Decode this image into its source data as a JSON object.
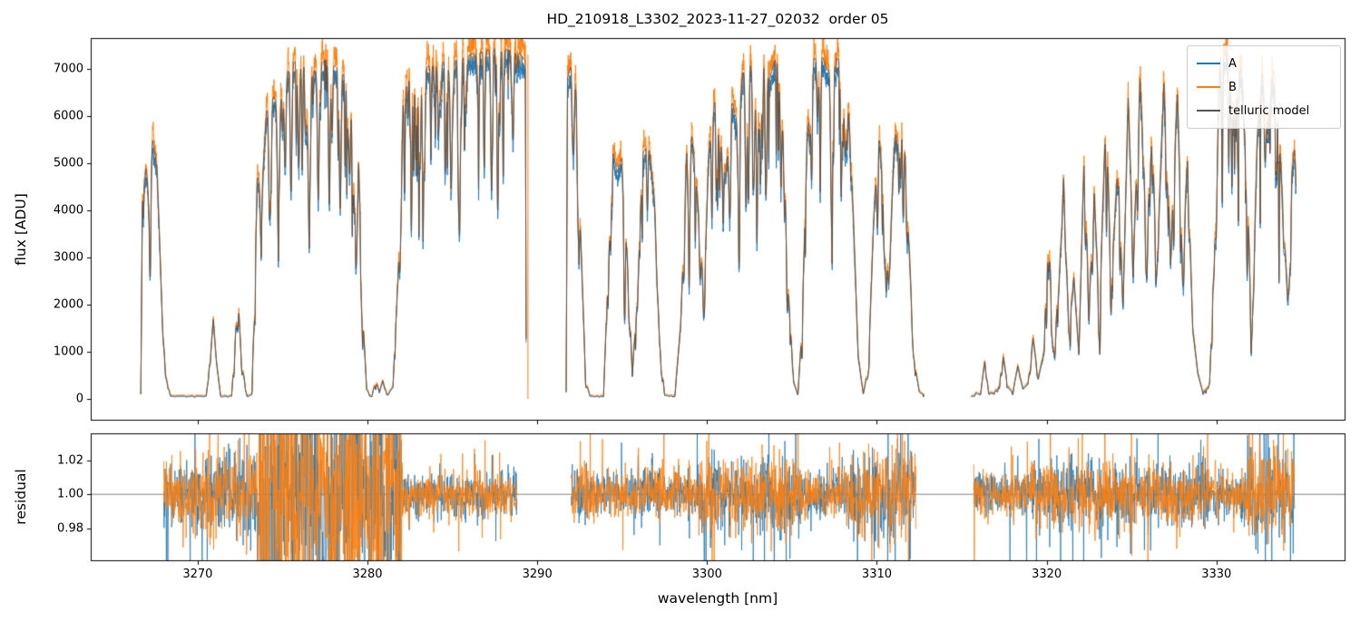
{
  "chart_data": {
    "type": "line",
    "title": "HD_210918_L3302_2023-11-27_02032  order 05",
    "xlabel": "wavelength [nm]",
    "xlim": [
      3263.7,
      3337.6
    ],
    "xticks": [
      3270,
      3280,
      3290,
      3300,
      3310,
      3320,
      3330
    ],
    "panels": [
      {
        "ylabel": "flux [ADU]",
        "ylim": [
          -460,
          7650
        ],
        "yticks": [
          0,
          1000,
          2000,
          3000,
          4000,
          5000,
          6000,
          7000
        ]
      },
      {
        "ylabel": "residual",
        "ylim": [
          0.9605,
          1.036
        ],
        "yticks": [
          0.98,
          1.0,
          1.02
        ],
        "ytick_labels": [
          "0.98",
          "1.00",
          "1.02"
        ],
        "hline": 1.0
      }
    ],
    "legend": {
      "position": "upper right",
      "entries": [
        {
          "label": "A",
          "color": "#1f77b4"
        },
        {
          "label": "B",
          "color": "#ff7f0e"
        },
        {
          "label": "telluric model",
          "color": "#555555"
        }
      ]
    },
    "traces": {
      "A": {
        "color": "#1f77b4",
        "scale": 0.965,
        "noise_frac": 0.018,
        "offset": 0,
        "seed": 11
      },
      "B": {
        "color": "#ff7f0e",
        "scale": 1.025,
        "noise_frac": 0.018,
        "offset": 25,
        "seed": 23
      },
      "model": {
        "color": "#4d4d4d",
        "scale": 1.0
      }
    },
    "microlines": {
      "density_per_nm": 6,
      "depth_range": [
        0.04,
        0.35
      ],
      "sigma_range": [
        0.012,
        0.045
      ],
      "seed": 7
    },
    "artifacts": [
      {
        "x": 3289.45,
        "y0": 0,
        "y1": 7300,
        "color": "#ff7f0e"
      }
    ],
    "spectrum_chunks": [
      {
        "x_start": 3266.65,
        "x_end": 3289.35,
        "envelope": [
          [
            3266.65,
            100
          ],
          [
            3266.75,
            4600
          ],
          [
            3266.95,
            5100
          ],
          [
            3267.1,
            4200
          ],
          [
            3267.35,
            5500
          ],
          [
            3267.6,
            4900
          ],
          [
            3267.85,
            2400
          ],
          [
            3268.1,
            500
          ],
          [
            3268.4,
            60
          ],
          [
            3270.5,
            60
          ],
          [
            3270.75,
            900
          ],
          [
            3270.92,
            1700
          ],
          [
            3271.1,
            800
          ],
          [
            3271.35,
            60
          ],
          [
            3272.0,
            60
          ],
          [
            3272.25,
            1500
          ],
          [
            3272.42,
            1850
          ],
          [
            3272.62,
            700
          ],
          [
            3272.9,
            60
          ],
          [
            3273.2,
            120
          ],
          [
            3273.5,
            4800
          ],
          [
            3273.75,
            4200
          ],
          [
            3274.05,
            6100
          ],
          [
            3274.4,
            6450
          ],
          [
            3274.8,
            6200
          ],
          [
            3275.2,
            6900
          ],
          [
            3275.7,
            7150
          ],
          [
            3276.3,
            7300
          ],
          [
            3276.9,
            6950
          ],
          [
            3277.5,
            7200
          ],
          [
            3278.1,
            7050
          ],
          [
            3278.7,
            6850
          ],
          [
            3279.2,
            6450
          ],
          [
            3279.5,
            5200
          ],
          [
            3279.75,
            1600
          ],
          [
            3279.95,
            200
          ],
          [
            3280.25,
            60
          ],
          [
            3280.5,
            420
          ],
          [
            3280.7,
            130
          ],
          [
            3280.9,
            390
          ],
          [
            3281.15,
            80
          ],
          [
            3281.5,
            250
          ],
          [
            3281.8,
            2600
          ],
          [
            3282.1,
            6300
          ],
          [
            3282.5,
            6950
          ],
          [
            3283.5,
            7050
          ],
          [
            3284.5,
            7150
          ],
          [
            3285.5,
            7250
          ],
          [
            3286.5,
            7350
          ],
          [
            3287.5,
            7430
          ],
          [
            3288.5,
            7400
          ],
          [
            3289.0,
            7320
          ],
          [
            3289.3,
            7150
          ],
          [
            3289.35,
            150
          ]
        ],
        "absorption_lines": [
          [
            3267.2,
            0.18,
            0.04
          ],
          [
            3274.3,
            0.3,
            0.05
          ],
          [
            3274.75,
            0.4,
            0.06
          ],
          [
            3275.15,
            0.28,
            0.05
          ],
          [
            3275.5,
            0.38,
            0.05
          ],
          [
            3275.95,
            0.32,
            0.05
          ],
          [
            3276.55,
            0.45,
            0.06
          ],
          [
            3277.1,
            0.4,
            0.05
          ],
          [
            3277.75,
            0.35,
            0.05
          ],
          [
            3278.4,
            0.32,
            0.05
          ],
          [
            3278.95,
            0.28,
            0.05
          ],
          [
            3279.35,
            0.3,
            0.05
          ],
          [
            3283.3,
            0.13,
            0.07
          ],
          [
            3284.2,
            0.1,
            0.06
          ],
          [
            3284.95,
            0.2,
            0.09
          ],
          [
            3285.8,
            0.12,
            0.06
          ],
          [
            3286.5,
            0.1,
            0.06
          ],
          [
            3287.3,
            0.07,
            0.05
          ],
          [
            3288.0,
            0.06,
            0.05
          ]
        ]
      },
      {
        "x_start": 3291.7,
        "x_end": 3312.8,
        "envelope": [
          [
            3291.7,
            150
          ],
          [
            3291.78,
            6800
          ],
          [
            3292.0,
            7100
          ],
          [
            3292.3,
            6500
          ],
          [
            3292.6,
            3000
          ],
          [
            3292.85,
            400
          ],
          [
            3293.1,
            60
          ],
          [
            3293.9,
            60
          ],
          [
            3294.15,
            2500
          ],
          [
            3294.45,
            5250
          ],
          [
            3294.7,
            4800
          ],
          [
            3294.95,
            5100
          ],
          [
            3295.3,
            3000
          ],
          [
            3295.6,
            600
          ],
          [
            3295.9,
            2100
          ],
          [
            3296.2,
            5200
          ],
          [
            3296.55,
            5450
          ],
          [
            3296.9,
            4200
          ],
          [
            3297.2,
            1200
          ],
          [
            3297.5,
            80
          ],
          [
            3298.1,
            60
          ],
          [
            3298.45,
            1600
          ],
          [
            3298.8,
            5400
          ],
          [
            3299.1,
            5600
          ],
          [
            3299.5,
            4000
          ],
          [
            3299.8,
            2300
          ],
          [
            3300.1,
            5200
          ],
          [
            3300.45,
            6300
          ],
          [
            3300.8,
            5400
          ],
          [
            3301.1,
            4700
          ],
          [
            3301.45,
            6350
          ],
          [
            3301.8,
            5800
          ],
          [
            3302.1,
            6900
          ],
          [
            3302.5,
            7200
          ],
          [
            3302.9,
            6500
          ],
          [
            3303.3,
            7250
          ],
          [
            3303.7,
            6800
          ],
          [
            3304.1,
            7300
          ],
          [
            3304.5,
            5500
          ],
          [
            3304.8,
            2200
          ],
          [
            3305.1,
            350
          ],
          [
            3305.35,
            80
          ],
          [
            3305.6,
            1600
          ],
          [
            3305.9,
            5600
          ],
          [
            3306.3,
            7200
          ],
          [
            3306.7,
            7350
          ],
          [
            3307.1,
            6950
          ],
          [
            3307.5,
            7350
          ],
          [
            3307.9,
            7100
          ],
          [
            3308.3,
            6400
          ],
          [
            3308.6,
            4000
          ],
          [
            3308.9,
            900
          ],
          [
            3309.2,
            100
          ],
          [
            3309.5,
            700
          ],
          [
            3309.8,
            3700
          ],
          [
            3310.1,
            5800
          ],
          [
            3310.4,
            4200
          ],
          [
            3310.7,
            2400
          ],
          [
            3311.0,
            5200
          ],
          [
            3311.3,
            6450
          ],
          [
            3311.6,
            5800
          ],
          [
            3311.9,
            3200
          ],
          [
            3312.2,
            800
          ],
          [
            3312.5,
            150
          ],
          [
            3312.8,
            80
          ]
        ],
        "absorption_lines": [
          [
            3292.15,
            0.12,
            0.04
          ],
          [
            3302.3,
            0.22,
            0.05
          ],
          [
            3302.95,
            0.28,
            0.05
          ],
          [
            3303.5,
            0.22,
            0.04
          ],
          [
            3306.5,
            0.18,
            0.04
          ],
          [
            3307.3,
            0.26,
            0.05
          ],
          [
            3308.0,
            0.22,
            0.04
          ],
          [
            3310.05,
            0.15,
            0.04
          ],
          [
            3311.2,
            0.12,
            0.04
          ]
        ]
      },
      {
        "x_start": 3315.55,
        "x_end": 3334.7,
        "envelope": [
          [
            3315.55,
            40
          ],
          [
            3315.8,
            130
          ],
          [
            3316.1,
            90
          ],
          [
            3316.35,
            800
          ],
          [
            3316.6,
            160
          ],
          [
            3316.9,
            110
          ],
          [
            3317.2,
            350
          ],
          [
            3317.45,
            900
          ],
          [
            3317.7,
            260
          ],
          [
            3318.0,
            130
          ],
          [
            3318.3,
            700
          ],
          [
            3318.6,
            210
          ],
          [
            3318.9,
            320
          ],
          [
            3319.2,
            1300
          ],
          [
            3319.5,
            420
          ],
          [
            3319.8,
            950
          ],
          [
            3320.1,
            3700
          ],
          [
            3320.4,
            1250
          ],
          [
            3320.7,
            2200
          ],
          [
            3321.0,
            4700
          ],
          [
            3321.3,
            1500
          ],
          [
            3321.6,
            2600
          ],
          [
            3321.9,
            950
          ],
          [
            3322.2,
            5200
          ],
          [
            3322.5,
            2000
          ],
          [
            3322.8,
            4400
          ],
          [
            3323.1,
            1800
          ],
          [
            3323.5,
            6200
          ],
          [
            3323.8,
            2500
          ],
          [
            3324.2,
            5000
          ],
          [
            3324.5,
            2000
          ],
          [
            3324.8,
            6400
          ],
          [
            3325.1,
            3000
          ],
          [
            3325.5,
            6800
          ],
          [
            3325.9,
            3500
          ],
          [
            3326.2,
            5600
          ],
          [
            3326.5,
            2800
          ],
          [
            3326.9,
            6700
          ],
          [
            3327.3,
            3200
          ],
          [
            3327.7,
            6500
          ],
          [
            3328.0,
            2800
          ],
          [
            3328.3,
            5200
          ],
          [
            3328.6,
            1500
          ],
          [
            3328.9,
            550
          ],
          [
            3329.2,
            130
          ],
          [
            3329.6,
            350
          ],
          [
            3329.9,
            3500
          ],
          [
            3330.2,
            7050
          ],
          [
            3330.6,
            7350
          ],
          [
            3330.9,
            6600
          ],
          [
            3331.2,
            7400
          ],
          [
            3331.5,
            6800
          ],
          [
            3331.8,
            4500
          ],
          [
            3332.1,
            1500
          ],
          [
            3332.4,
            5500
          ],
          [
            3332.7,
            6900
          ],
          [
            3333.0,
            5600
          ],
          [
            3333.3,
            6800
          ],
          [
            3333.6,
            6200
          ],
          [
            3333.9,
            4200
          ],
          [
            3334.2,
            2100
          ],
          [
            3334.45,
            4800
          ],
          [
            3334.6,
            5300
          ],
          [
            3334.7,
            4400
          ]
        ],
        "absorption_lines": [
          [
            3330.75,
            0.1,
            0.04
          ],
          [
            3331.05,
            0.12,
            0.04
          ],
          [
            3332.85,
            0.1,
            0.04
          ]
        ]
      }
    ],
    "residual": {
      "sample_step": 0.02,
      "hline": 1.0,
      "hline_color": "#808080",
      "chunks": [
        {
          "x_start": 3268.0,
          "x_end": 3288.8,
          "base_sigma": 0.006,
          "regions": [
            [
              3268.0,
              3269.3,
              0.01
            ],
            [
              3269.3,
              3273.5,
              0.013
            ],
            [
              3273.5,
              3282.0,
              0.04
            ],
            [
              3282.0,
              3288.8,
              0.007
            ]
          ]
        },
        {
          "x_start": 3292.0,
          "x_end": 3312.3,
          "base_sigma": 0.007,
          "regions": [
            [
              3292.0,
              3293.5,
              0.009
            ],
            [
              3299.5,
              3305.5,
              0.011
            ],
            [
              3308.3,
              3312.3,
              0.014
            ]
          ]
        },
        {
          "x_start": 3315.7,
          "x_end": 3334.6,
          "base_sigma": 0.007,
          "regions": [
            [
              3319.0,
              3329.5,
              0.01
            ],
            [
              3331.8,
              3334.6,
              0.015
            ]
          ]
        }
      ],
      "traces": [
        {
          "name": "A",
          "color": "#1f77b4",
          "seed": 101
        },
        {
          "name": "B",
          "color": "#ff7f0e",
          "seed": 202
        }
      ]
    }
  }
}
